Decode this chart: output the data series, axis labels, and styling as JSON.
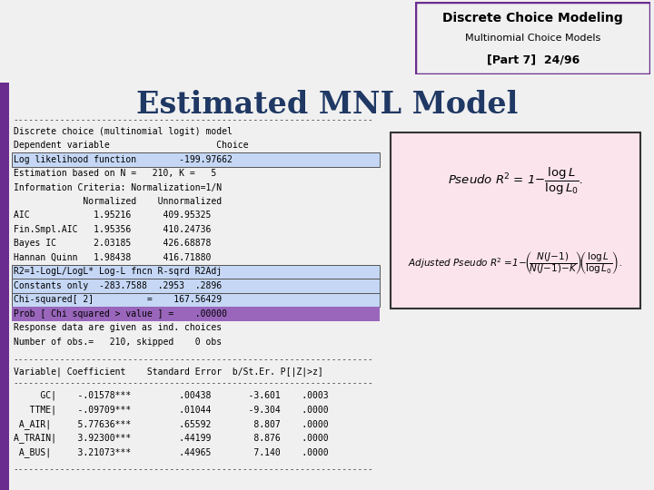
{
  "title": "Estimated MNL Model",
  "header_line1": "Discrete Choice Modeling",
  "header_line2": "Multinomial Choice Models",
  "header_line3": "[Part 7]  24/96",
  "title_color": "#1f3864",
  "purple_color": "#6a2d8f",
  "monospace_lines": [
    "Discrete choice (multinomial logit) model",
    "Dependent variable                    Choice",
    "Log likelihood function        -199.97662",
    "Estimation based on N =   210, K =   5",
    "Information Criteria: Normalization=1/N",
    "             Normalized    Unnormalized",
    "AIC            1.95216      409.95325",
    "Fin.Smpl.AIC   1.95356      410.24736",
    "Bayes IC       2.03185      426.68878",
    "Hannan Quinn   1.98438      416.71880",
    "R2=1-LogL/LogL* Log-L fncn R-sqrd R2Adj",
    "Constants only  -283.7588  .2953  .2896",
    "Chi-squared[ 2]          =    167.56429",
    "Prob [ Chi squared > value ] =    .00000",
    "Response data are given as ind. choices",
    "Number of obs.=   210, skipped    0 obs"
  ],
  "highlight_blue_rows": [
    2,
    10,
    11,
    12
  ],
  "highlight_purple_row": 13,
  "highlight_blue_color": "#c5d7f5",
  "highlight_purple_color": "#9966bb",
  "col_header": "Variable| Coefficient    Standard Error  b/St.Er. P[|Z|>z]",
  "table_rows": [
    "     GC|    -.01578***         .00438       -3.601    .0003",
    "   TTME|    -.09709***         .01044       -9.304    .0000",
    " A_AIR|     5.77636***         .65592        8.807    .0000",
    "A_TRAIN|    3.92300***         .44199        8.876    .0000",
    " A_BUS|     3.21073***         .44965        7.140    .0000"
  ],
  "pseudo_r2_box_color": "#fce4ec",
  "pseudo_r2_border": "#333333",
  "dashes": "---------------------------------------------------------------------"
}
